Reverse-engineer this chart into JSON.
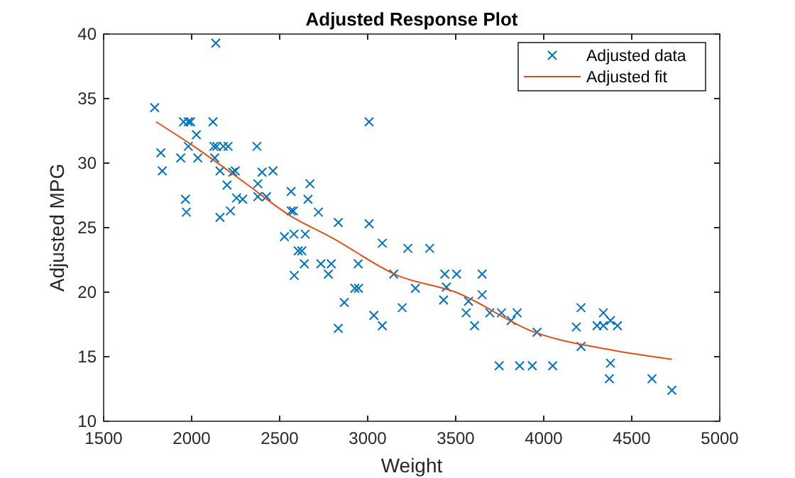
{
  "chart_data": {
    "type": "scatter",
    "title": "Adjusted Response Plot",
    "xlabel": "Weight",
    "ylabel": "Adjusted MPG",
    "xlim": [
      1500,
      5000
    ],
    "xticks": [
      1500,
      2000,
      2500,
      3000,
      3500,
      4000,
      4500,
      5000
    ],
    "ylim": [
      10,
      40
    ],
    "yticks": [
      10,
      15,
      20,
      25,
      30,
      35,
      40
    ],
    "grid": false,
    "legend": "top right",
    "series": [
      {
        "name": "Adjusted data",
        "marker": "cross",
        "color": "#0072bd",
        "x": [
          1790,
          2137,
          1954,
          1981,
          1994,
          2121,
          2027,
          1825,
          1833,
          1938,
          1981,
          2035,
          2126,
          2142,
          2180,
          2207,
          2131,
          2161,
          2234,
          2248,
          2201,
          1965,
          1970,
          2161,
          2220,
          2255,
          2290,
          2371,
          2376,
          2400,
          2462,
          2376,
          2425,
          2565,
          2672,
          2661,
          2565,
          2578,
          2720,
          2833,
          3008,
          3008,
          2527,
          2581,
          2645,
          2605,
          2626,
          2640,
          2734,
          2793,
          2583,
          2777,
          2946,
          3083,
          3228,
          3148,
          2927,
          2948,
          2867,
          3035,
          3083,
          3196,
          2833,
          3352,
          3438,
          3505,
          3447,
          3431,
          3271,
          3650,
          3650,
          3573,
          3559,
          3607,
          3694,
          3760,
          3815,
          3849,
          3962,
          3747,
          3863,
          3935,
          4051,
          4212,
          4185,
          4212,
          4339,
          4303,
          4339,
          4379,
          4419,
          4379,
          4373,
          4615,
          4728
        ],
        "values": [
          34.3,
          39.3,
          33.2,
          33.2,
          33.2,
          33.2,
          32.2,
          30.8,
          29.4,
          30.4,
          31.3,
          30.4,
          31.3,
          31.3,
          31.3,
          31.3,
          30.4,
          29.4,
          29.3,
          29.4,
          28.3,
          27.2,
          26.2,
          25.8,
          26.3,
          27.3,
          27.2,
          31.3,
          28.4,
          29.3,
          29.4,
          27.4,
          27.4,
          27.8,
          28.4,
          27.2,
          26.3,
          26.3,
          26.2,
          25.4,
          33.2,
          25.3,
          24.3,
          24.5,
          24.5,
          23.2,
          23.2,
          22.2,
          22.2,
          22.2,
          21.3,
          21.4,
          22.2,
          23.8,
          23.4,
          21.4,
          20.3,
          20.3,
          19.2,
          18.2,
          17.4,
          18.8,
          17.2,
          23.4,
          21.4,
          21.4,
          20.4,
          19.4,
          20.3,
          21.4,
          19.8,
          19.3,
          18.4,
          17.4,
          18.4,
          18.4,
          17.8,
          18.4,
          16.9,
          14.3,
          14.3,
          14.3,
          14.3,
          18.8,
          17.3,
          15.8,
          18.4,
          17.4,
          17.4,
          17.8,
          17.4,
          14.5,
          13.3,
          13.3,
          12.4
        ]
      },
      {
        "name": "Adjusted fit",
        "type": "line",
        "marker": "none",
        "line_style": "solid",
        "color": "#d95319",
        "x": [
          1798,
          2013,
          2300,
          2551,
          2800,
          3169,
          3500,
          3948,
          4352,
          4728
        ],
        "values": [
          33.2,
          31.3,
          28.5,
          26.0,
          24.2,
          21.3,
          20.0,
          16.9,
          15.6,
          14.8
        ]
      }
    ]
  }
}
